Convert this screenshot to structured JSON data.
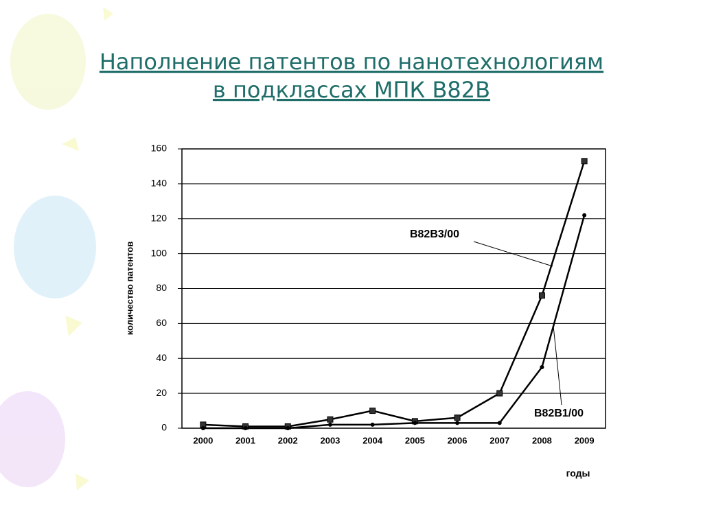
{
  "chart_data": {
    "type": "line",
    "title": [
      "Наполнение патентов по нанотехнологиям",
      "в подклассах МПК   B82B"
    ],
    "y_label": "количество патентов",
    "x_label": "годы",
    "categories": [
      "2000",
      "2001",
      "2002",
      "2003",
      "2004",
      "2005",
      "2006",
      "2007",
      "2008",
      "2009"
    ],
    "series": [
      {
        "name": "B82B3/00",
        "color": "#000000",
        "marker": "square",
        "values": [
          2,
          1,
          1,
          5,
          10,
          4,
          6,
          20,
          76,
          153
        ]
      },
      {
        "name": "B82B1/00",
        "color": "#000000",
        "marker": "circle",
        "values": [
          0,
          0,
          0,
          2,
          2,
          3,
          3,
          3,
          35,
          122
        ]
      }
    ],
    "ylim": [
      0,
      160
    ],
    "yticks": [
      0,
      20,
      40,
      60,
      80,
      100,
      120,
      140,
      160
    ],
    "grid": true
  }
}
